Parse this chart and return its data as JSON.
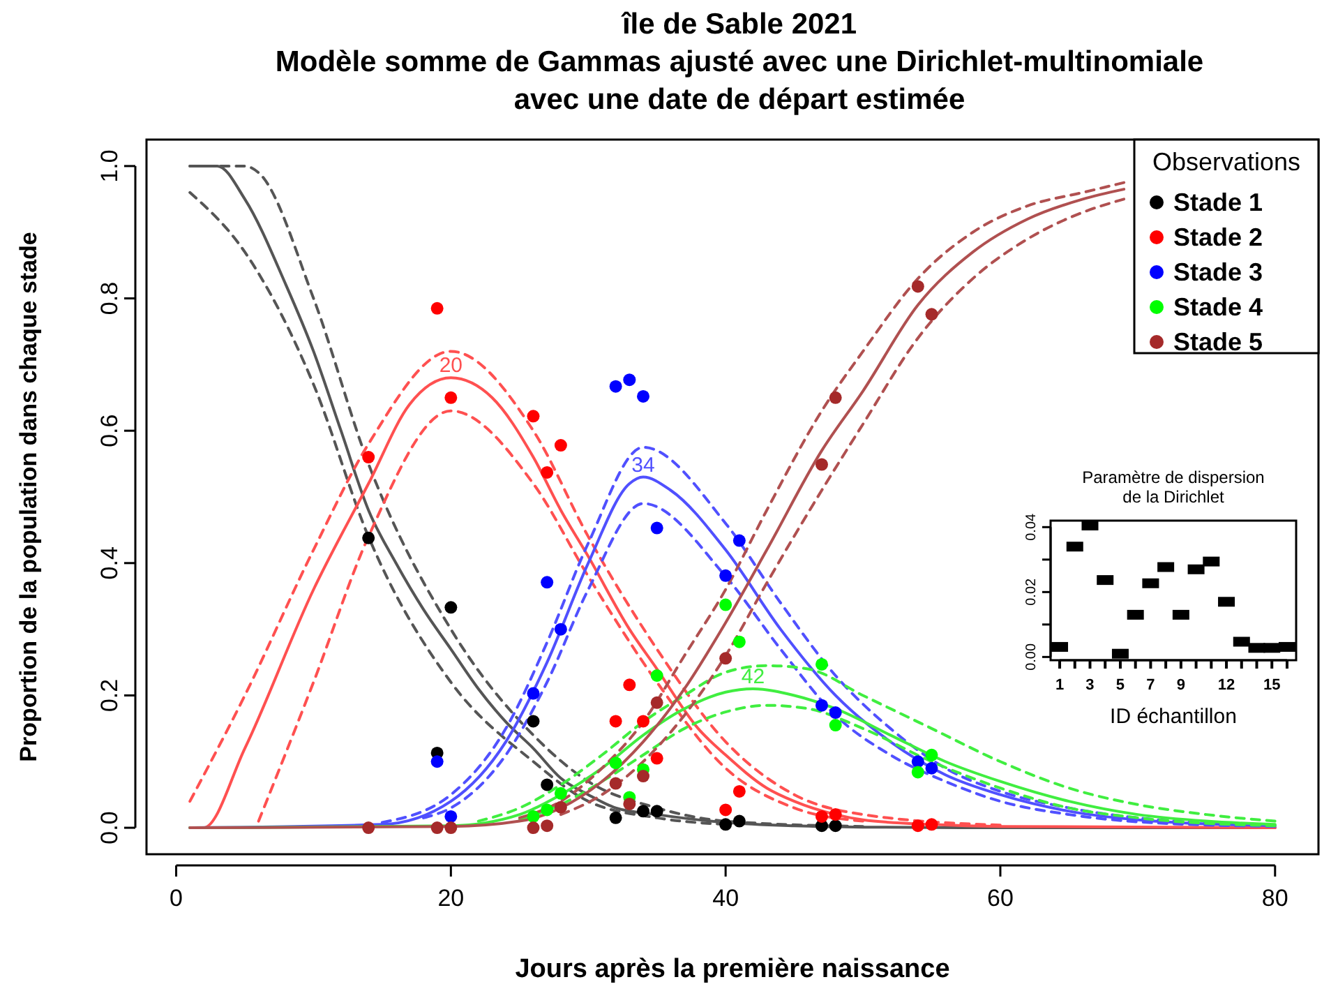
{
  "chart_data": [
    {
      "type": "line",
      "title": "île de Sable 2021\nModèle somme de Gammas ajusté avec une Dirichlet-multinomiale\navec une date de départ estimée",
      "xlabel": "Jours après la première naissance",
      "ylabel": "Proportion de la population dans chaque stade",
      "xlim": [
        -2.16,
        83.16
      ],
      "ylim": [
        -0.04,
        1.04
      ],
      "xticks": [
        0,
        20,
        40,
        60,
        80
      ],
      "yticks": [
        {
          "value": 0,
          "label": "0.0"
        },
        {
          "value": 0.2,
          "label": "0.2"
        },
        {
          "value": 0.4,
          "label": "0.4"
        },
        {
          "value": 0.6,
          "label": "0.6"
        },
        {
          "value": 0.8,
          "label": "0.8"
        },
        {
          "value": 1,
          "label": "1.0"
        }
      ],
      "grid": false,
      "legend": "top right",
      "legend_title": "Observations",
      "annotations": [
        {
          "text": "20",
          "x": 20,
          "y": 0.68
        },
        {
          "text": "34",
          "x": 34,
          "y": 0.53
        },
        {
          "text": "42",
          "x": 42,
          "y": 0.21
        }
      ],
      "series": [
        {
          "type": "line",
          "color": "#555555",
          "line_style": "solid",
          "x": [
            1,
            3,
            5,
            8,
            10,
            12,
            14,
            16,
            18,
            20,
            22,
            24,
            26,
            28,
            30,
            32,
            35,
            40,
            45,
            50,
            60,
            80
          ],
          "values": [
            1,
            1,
            0.95,
            0.82,
            0.72,
            0.6,
            0.48,
            0.4,
            0.33,
            0.27,
            0.21,
            0.16,
            0.12,
            0.075,
            0.05,
            0.03,
            0.02,
            0.008,
            0.003,
            0.001,
            0,
            0
          ]
        },
        {
          "type": "line",
          "color": "#555555",
          "line_style": "dashed",
          "x": [
            1,
            5,
            6,
            10,
            14,
            20,
            26,
            30,
            35,
            40,
            50
          ],
          "values": [
            1,
            1,
            0.99,
            0.8,
            0.55,
            0.3,
            0.14,
            0.07,
            0.03,
            0.01,
            0.002
          ]
        },
        {
          "type": "line",
          "color": "#555555",
          "line_style": "dashed",
          "x": [
            1,
            5,
            10,
            14,
            20,
            26,
            30,
            35,
            40
          ],
          "values": [
            0.96,
            0.87,
            0.67,
            0.44,
            0.22,
            0.1,
            0.04,
            0.015,
            0.005
          ]
        },
        {
          "type": "line",
          "color": "#ff5050",
          "line_style": "solid",
          "x": [
            1,
            2,
            5,
            10,
            14,
            17,
            20,
            23,
            26,
            28,
            30,
            33,
            35,
            38,
            40,
            43,
            45,
            48,
            50,
            55,
            60,
            80
          ],
          "values": [
            0,
            0,
            0.12,
            0.36,
            0.52,
            0.64,
            0.68,
            0.65,
            0.56,
            0.48,
            0.41,
            0.3,
            0.24,
            0.15,
            0.11,
            0.06,
            0.04,
            0.02,
            0.012,
            0.005,
            0.002,
            0
          ]
        },
        {
          "type": "line",
          "color": "#ff5050",
          "line_style": "dashed",
          "x": [
            1,
            5,
            10,
            14,
            20,
            26,
            30,
            35,
            40,
            45,
            50,
            60
          ],
          "values": [
            0.04,
            0.2,
            0.42,
            0.58,
            0.72,
            0.6,
            0.44,
            0.27,
            0.13,
            0.05,
            0.02,
            0.004
          ]
        },
        {
          "type": "line",
          "color": "#ff5050",
          "line_style": "dashed",
          "x": [
            6,
            10,
            14,
            20,
            26,
            30,
            35,
            40,
            45,
            50
          ],
          "values": [
            0.01,
            0.22,
            0.44,
            0.63,
            0.52,
            0.38,
            0.22,
            0.09,
            0.03,
            0.01
          ]
        },
        {
          "type": "line",
          "color": "#5050ff",
          "line_style": "solid",
          "x": [
            1,
            15,
            20,
            24,
            27,
            30,
            33,
            34,
            36,
            40,
            44,
            48,
            52,
            56,
            60,
            65,
            70,
            80
          ],
          "values": [
            0,
            0.005,
            0.04,
            0.13,
            0.25,
            0.4,
            0.52,
            0.53,
            0.51,
            0.42,
            0.3,
            0.2,
            0.13,
            0.08,
            0.05,
            0.025,
            0.012,
            0.003
          ]
        },
        {
          "type": "line",
          "color": "#5050ff",
          "line_style": "dashed",
          "x": [
            15,
            20,
            24,
            27,
            30,
            34,
            40,
            44,
            48,
            52,
            56,
            60,
            65,
            70,
            80
          ],
          "values": [
            0.008,
            0.05,
            0.15,
            0.28,
            0.43,
            0.575,
            0.46,
            0.34,
            0.23,
            0.15,
            0.09,
            0.055,
            0.03,
            0.015,
            0.004
          ]
        },
        {
          "type": "line",
          "color": "#5050ff",
          "line_style": "dashed",
          "x": [
            18,
            20,
            24,
            27,
            30,
            34,
            40,
            44,
            48,
            52,
            56,
            60,
            65,
            70,
            80
          ],
          "values": [
            0.015,
            0.03,
            0.11,
            0.22,
            0.36,
            0.49,
            0.38,
            0.27,
            0.17,
            0.11,
            0.07,
            0.04,
            0.02,
            0.009,
            0.002
          ]
        },
        {
          "type": "line",
          "color": "#40ee40",
          "line_style": "solid",
          "x": [
            1,
            20,
            25,
            28,
            31,
            34,
            37,
            40,
            42,
            45,
            48,
            52,
            56,
            60,
            65,
            70,
            75,
            80
          ],
          "values": [
            0,
            0.003,
            0.02,
            0.05,
            0.09,
            0.14,
            0.18,
            0.205,
            0.21,
            0.2,
            0.18,
            0.14,
            0.1,
            0.07,
            0.04,
            0.02,
            0.01,
            0.005
          ]
        },
        {
          "type": "line",
          "color": "#40ee40",
          "line_style": "dashed",
          "x": [
            22,
            25,
            28,
            31,
            34,
            37,
            40,
            43,
            46,
            50,
            55,
            60,
            65,
            70,
            75,
            80
          ],
          "values": [
            0.01,
            0.03,
            0.065,
            0.11,
            0.16,
            0.2,
            0.235,
            0.245,
            0.24,
            0.2,
            0.15,
            0.1,
            0.06,
            0.035,
            0.02,
            0.01
          ]
        },
        {
          "type": "line",
          "color": "#40ee40",
          "line_style": "dashed",
          "x": [
            25,
            28,
            31,
            34,
            37,
            40,
            43,
            46,
            50,
            55,
            60,
            65,
            70,
            80
          ],
          "values": [
            0.012,
            0.035,
            0.07,
            0.11,
            0.15,
            0.175,
            0.185,
            0.18,
            0.15,
            0.1,
            0.06,
            0.03,
            0.015,
            0.003
          ]
        },
        {
          "type": "line",
          "color": "#b05050",
          "line_style": "solid",
          "x": [
            1,
            20,
            25,
            28,
            31,
            34,
            37,
            40,
            43,
            47,
            50,
            54,
            58,
            62,
            66,
            69
          ],
          "values": [
            0,
            0.002,
            0.01,
            0.03,
            0.07,
            0.13,
            0.21,
            0.31,
            0.42,
            0.57,
            0.66,
            0.79,
            0.87,
            0.92,
            0.95,
            0.965
          ]
        },
        {
          "type": "line",
          "color": "#b05050",
          "line_style": "dashed",
          "x": [
            25,
            28,
            31,
            34,
            37,
            40,
            43,
            47,
            50,
            54,
            58,
            62,
            66,
            69
          ],
          "values": [
            0.015,
            0.04,
            0.09,
            0.16,
            0.26,
            0.36,
            0.48,
            0.63,
            0.72,
            0.83,
            0.9,
            0.94,
            0.96,
            0.975
          ]
        },
        {
          "type": "line",
          "color": "#b05050",
          "line_style": "dashed",
          "x": [
            28,
            31,
            34,
            37,
            40,
            43,
            47,
            50,
            54,
            58,
            62,
            66,
            69
          ],
          "values": [
            0.02,
            0.05,
            0.1,
            0.17,
            0.26,
            0.37,
            0.51,
            0.61,
            0.74,
            0.83,
            0.89,
            0.93,
            0.95
          ]
        },
        {
          "type": "scatter",
          "name": "Stade 1",
          "color": "#000000",
          "marker": "circle",
          "x": [
            14,
            19,
            20,
            26,
            27,
            32,
            34,
            35,
            40,
            41,
            47,
            48
          ],
          "values": [
            0.438,
            0.113,
            0.333,
            0.161,
            0.065,
            0.015,
            0.025,
            0.025,
            0.005,
            0.01,
            0.003,
            0.003
          ]
        },
        {
          "type": "scatter",
          "name": "Stade 2",
          "color": "#ff0000",
          "marker": "circle",
          "x": [
            14,
            19,
            20,
            26,
            27,
            28,
            32,
            33,
            34,
            35,
            40,
            41,
            47,
            48,
            54,
            55
          ],
          "values": [
            0.56,
            0.785,
            0.65,
            0.622,
            0.537,
            0.578,
            0.161,
            0.216,
            0.161,
            0.105,
            0.027,
            0.055,
            0.017,
            0.02,
            0.003,
            0.005
          ]
        },
        {
          "type": "scatter",
          "name": "Stade 3",
          "color": "#0000ff",
          "marker": "circle",
          "x": [
            19,
            20,
            26,
            27,
            28,
            32,
            33,
            34,
            35,
            40,
            41,
            47,
            48,
            54,
            55
          ],
          "values": [
            0.1,
            0.017,
            0.203,
            0.371,
            0.3,
            0.667,
            0.677,
            0.652,
            0.453,
            0.381,
            0.434,
            0.185,
            0.174,
            0.1,
            0.09
          ]
        },
        {
          "type": "scatter",
          "name": "Stade 4",
          "color": "#00ff00",
          "marker": "circle",
          "x": [
            26,
            27,
            28,
            32,
            33,
            34,
            35,
            40,
            41,
            47,
            48,
            54,
            55
          ],
          "values": [
            0.017,
            0.027,
            0.052,
            0.098,
            0.046,
            0.088,
            0.23,
            0.337,
            0.281,
            0.247,
            0.155,
            0.084,
            0.11
          ]
        },
        {
          "type": "scatter",
          "name": "Stade 5",
          "color": "#a52a2a",
          "marker": "circle",
          "x": [
            14,
            19,
            20,
            26,
            27,
            28,
            32,
            33,
            34,
            35,
            40,
            47,
            48,
            54,
            55
          ],
          "values": [
            0,
            0,
            0,
            0,
            0.003,
            0.031,
            0.067,
            0.036,
            0.078,
            0.189,
            0.256,
            0.549,
            0.65,
            0.818,
            0.776
          ]
        }
      ]
    },
    {
      "type": "scatter",
      "title": "Paramètre de dispersion\nde la Dirichlet",
      "xlabel": "ID échantillon",
      "xlim": [
        0.4,
        16.6
      ],
      "ylim": [
        -0.001,
        0.042
      ],
      "xticks": [
        1,
        {
          "value": 2,
          "label": null
        },
        3,
        {
          "value": 4,
          "label": null
        },
        5,
        {
          "value": 6,
          "label": null
        },
        7,
        {
          "value": 8,
          "label": null
        },
        9,
        {
          "value": 10,
          "label": null
        },
        {
          "value": 11,
          "label": null
        },
        12,
        {
          "value": 13,
          "label": null
        },
        {
          "value": 14,
          "label": null
        },
        15,
        {
          "value": 16,
          "label": null
        }
      ],
      "yticks": [
        {
          "value": 0,
          "label": "0.00"
        },
        {
          "value": 0.01,
          "label": null
        },
        {
          "value": 0.02,
          "label": "0.02"
        },
        {
          "value": 0.03,
          "label": null
        },
        {
          "value": 0.04,
          "label": "0.04"
        }
      ],
      "grid": false,
      "marker": "square",
      "series": [
        {
          "color": "#000000",
          "x": [
            1,
            2,
            3,
            4,
            5,
            6,
            7,
            8,
            9,
            10,
            11,
            12,
            13,
            14,
            15,
            16
          ],
          "values": [
            0.0031,
            0.034,
            0.0405,
            0.0237,
            0.001,
            0.013,
            0.0227,
            0.0277,
            0.013,
            0.027,
            0.0294,
            0.017,
            0.0047,
            0.0028,
            0.0028,
            0.0031
          ]
        }
      ]
    }
  ]
}
